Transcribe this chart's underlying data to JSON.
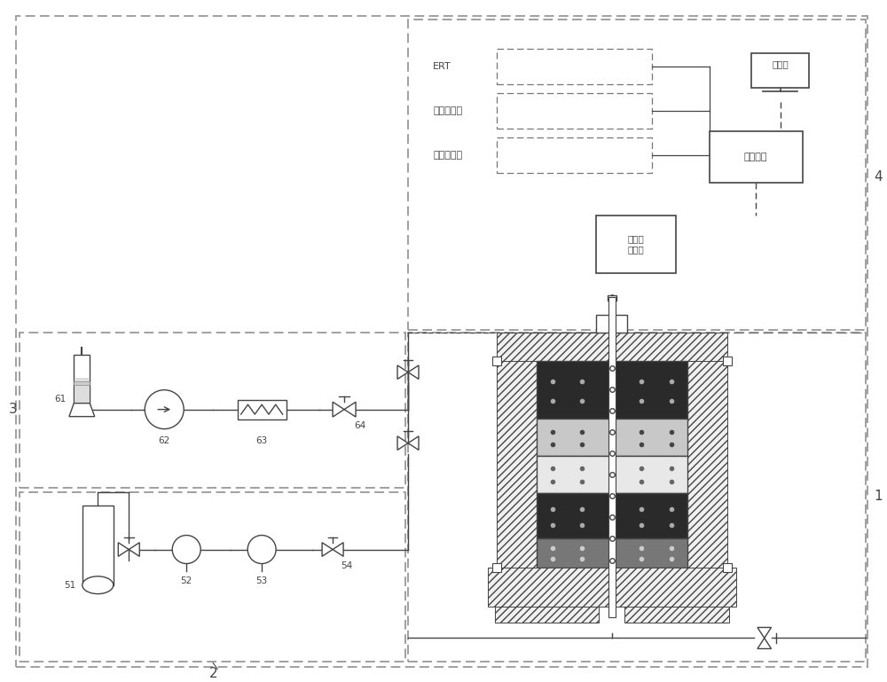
{
  "bg_color": "#ffffff",
  "lc": "#444444",
  "dc": "#777777",
  "figsize": [
    10.0,
    7.69
  ],
  "dpi": 100,
  "labels": {
    "computer": "计算机",
    "data_acq": "数据采集",
    "endoscope": "内穚镜\n显示屏",
    "ert": "ERT",
    "pressure": "压力传感器",
    "temp": "温度传感器",
    "z1": "1",
    "z2": "2",
    "z3": "3",
    "z4": "4",
    "n51": "51",
    "n52": "52",
    "n53": "53",
    "n54": "54",
    "n61": "61",
    "n62": "62",
    "n63": "63",
    "n64": "64"
  }
}
